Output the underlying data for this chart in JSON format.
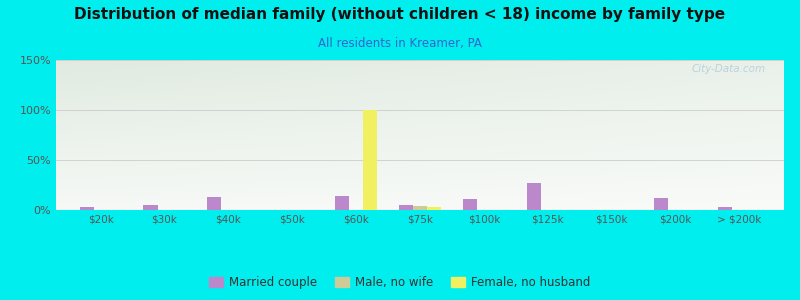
{
  "title": "Distribution of median family (without children < 18) income by family type",
  "subtitle": "All residents in Kreamer, PA",
  "title_color": "#111111",
  "subtitle_color": "#3366cc",
  "background_color": "#00eeee",
  "categories": [
    "$20k",
    "$30k",
    "$40k",
    "$50k",
    "$60k",
    "$75k",
    "$100k",
    "$125k",
    "$150k",
    "$200k",
    "> $200k"
  ],
  "married_couple": [
    3,
    5,
    13,
    0,
    14,
    5,
    11,
    27,
    0,
    12,
    3
  ],
  "male_no_wife": [
    0,
    0,
    0,
    0,
    0,
    4,
    0,
    0,
    0,
    0,
    0
  ],
  "female_no_husband": [
    0,
    0,
    0,
    0,
    100,
    3,
    0,
    0,
    0,
    0,
    0
  ],
  "ylim": [
    0,
    150
  ],
  "yticks": [
    0,
    50,
    100,
    150
  ],
  "ytick_labels": [
    "0%",
    "50%",
    "100%",
    "150%"
  ],
  "bar_width": 0.22,
  "married_couple_color": "#bb88cc",
  "male_no_wife_color": "#cccc99",
  "female_no_husband_color": "#f0f060",
  "legend_labels": [
    "Married couple",
    "Male, no wife",
    "Female, no husband"
  ],
  "watermark": "City-Data.com",
  "grid_color": "#cccccc",
  "tick_color": "#555555",
  "title_fontsize": 11,
  "subtitle_fontsize": 8.5,
  "tick_fontsize": 7.5
}
